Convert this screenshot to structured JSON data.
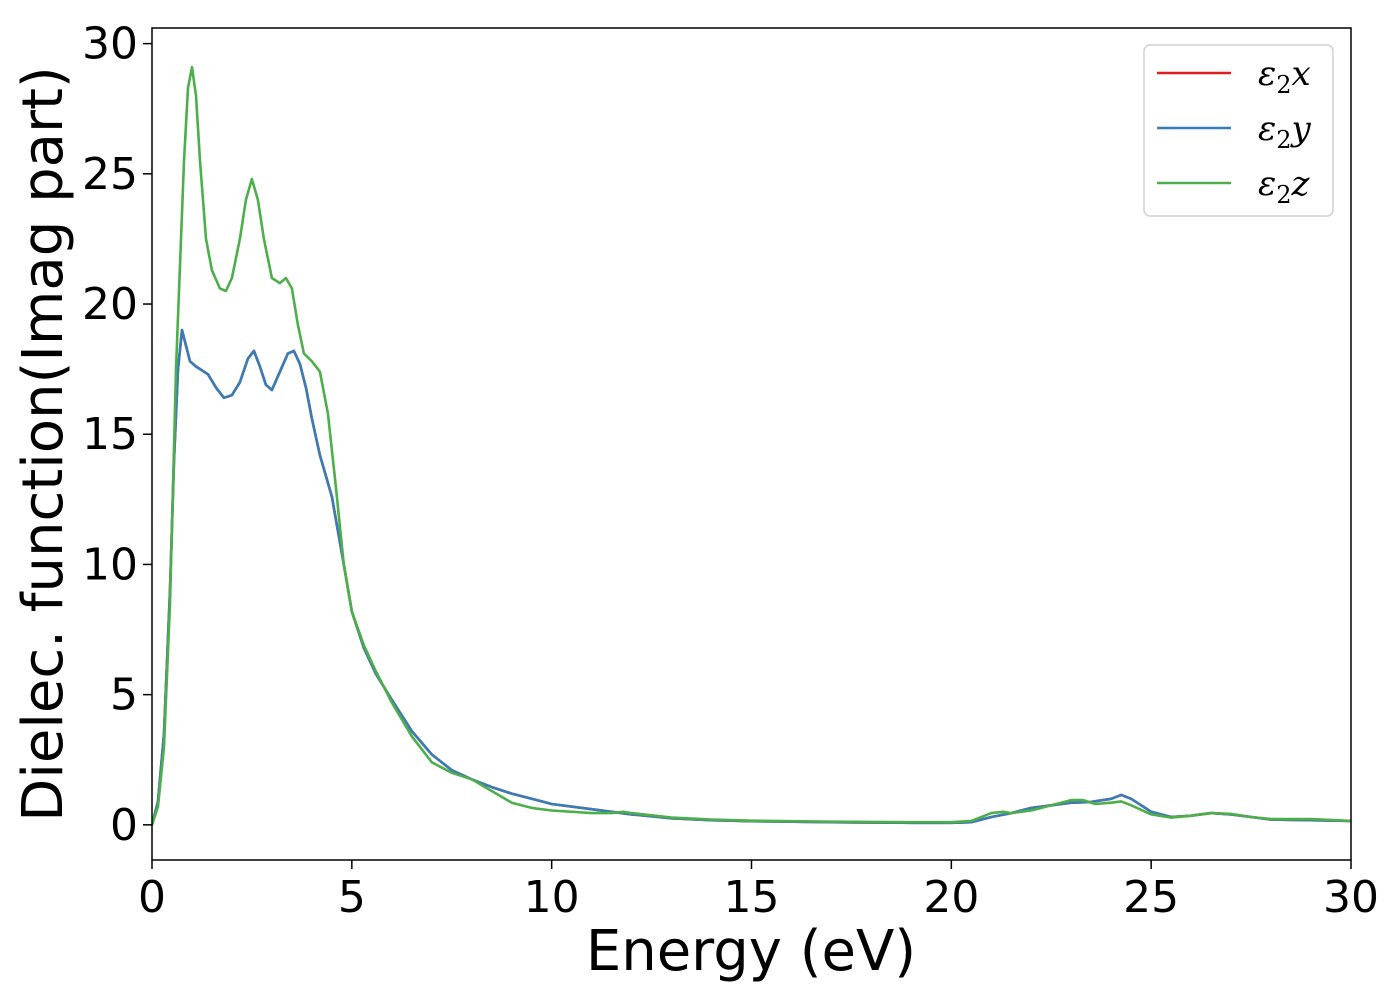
{
  "chart_data": {
    "type": "line",
    "title": "",
    "xlabel": "Energy (eV)",
    "ylabel": "Dielec. function(Imag part)",
    "xlim": [
      0,
      30
    ],
    "ylim": [
      -1.35,
      30.6
    ],
    "xticks": [
      0,
      5,
      10,
      15,
      20,
      25,
      30
    ],
    "yticks": [
      0,
      5,
      10,
      15,
      20,
      25,
      30
    ],
    "grid": false,
    "legend_position": "top-right",
    "series": [
      {
        "name": "x",
        "label_prefix": "ε",
        "label_sub": "2",
        "color": "#e41a1c",
        "points": [
          [
            0,
            0
          ],
          [
            0.15,
            0.9
          ],
          [
            0.3,
            3.5
          ],
          [
            0.45,
            9
          ],
          [
            0.55,
            14
          ],
          [
            0.65,
            17.5
          ],
          [
            0.75,
            19.0
          ],
          [
            0.85,
            18.4
          ],
          [
            0.95,
            17.8
          ],
          [
            1.1,
            17.6
          ],
          [
            1.4,
            17.3
          ],
          [
            1.6,
            16.8
          ],
          [
            1.8,
            16.4
          ],
          [
            2.0,
            16.5
          ],
          [
            2.2,
            17.0
          ],
          [
            2.4,
            17.9
          ],
          [
            2.55,
            18.2
          ],
          [
            2.7,
            17.6
          ],
          [
            2.85,
            16.9
          ],
          [
            3.0,
            16.7
          ],
          [
            3.2,
            17.4
          ],
          [
            3.4,
            18.1
          ],
          [
            3.55,
            18.2
          ],
          [
            3.7,
            17.7
          ],
          [
            3.85,
            16.8
          ],
          [
            4.0,
            15.6
          ],
          [
            4.2,
            14.2
          ],
          [
            4.5,
            12.6
          ],
          [
            4.8,
            10.0
          ],
          [
            5.0,
            8.2
          ],
          [
            5.3,
            6.8
          ],
          [
            5.6,
            5.8
          ],
          [
            6.0,
            4.8
          ],
          [
            6.5,
            3.6
          ],
          [
            7.0,
            2.7
          ],
          [
            7.5,
            2.1
          ],
          [
            8.0,
            1.75
          ],
          [
            8.5,
            1.45
          ],
          [
            9.0,
            1.2
          ],
          [
            9.5,
            1.0
          ],
          [
            10.0,
            0.8
          ],
          [
            11.0,
            0.6
          ],
          [
            12.0,
            0.4
          ],
          [
            13.0,
            0.25
          ],
          [
            14.0,
            0.18
          ],
          [
            15.0,
            0.14
          ],
          [
            17.0,
            0.1
          ],
          [
            19.0,
            0.08
          ],
          [
            20.0,
            0.08
          ],
          [
            20.5,
            0.1
          ],
          [
            21.0,
            0.3
          ],
          [
            21.5,
            0.45
          ],
          [
            22.0,
            0.65
          ],
          [
            22.5,
            0.75
          ],
          [
            23.0,
            0.85
          ],
          [
            23.5,
            0.88
          ],
          [
            24.0,
            1.0
          ],
          [
            24.25,
            1.15
          ],
          [
            24.5,
            1.0
          ],
          [
            25.0,
            0.5
          ],
          [
            25.5,
            0.3
          ],
          [
            26.0,
            0.35
          ],
          [
            26.5,
            0.45
          ],
          [
            27.0,
            0.4
          ],
          [
            27.5,
            0.3
          ],
          [
            28.0,
            0.2
          ],
          [
            29.0,
            0.18
          ],
          [
            30.0,
            0.15
          ]
        ]
      },
      {
        "name": "y",
        "label_prefix": "ε",
        "label_sub": "2",
        "color": "#377eb8",
        "points": [
          [
            0,
            0
          ],
          [
            0.15,
            0.9
          ],
          [
            0.3,
            3.5
          ],
          [
            0.45,
            9
          ],
          [
            0.55,
            14
          ],
          [
            0.65,
            17.5
          ],
          [
            0.75,
            19.0
          ],
          [
            0.85,
            18.4
          ],
          [
            0.95,
            17.8
          ],
          [
            1.1,
            17.6
          ],
          [
            1.4,
            17.3
          ],
          [
            1.6,
            16.8
          ],
          [
            1.8,
            16.4
          ],
          [
            2.0,
            16.5
          ],
          [
            2.2,
            17.0
          ],
          [
            2.4,
            17.9
          ],
          [
            2.55,
            18.2
          ],
          [
            2.7,
            17.6
          ],
          [
            2.85,
            16.9
          ],
          [
            3.0,
            16.7
          ],
          [
            3.2,
            17.4
          ],
          [
            3.4,
            18.1
          ],
          [
            3.55,
            18.2
          ],
          [
            3.7,
            17.7
          ],
          [
            3.85,
            16.8
          ],
          [
            4.0,
            15.6
          ],
          [
            4.2,
            14.2
          ],
          [
            4.5,
            12.6
          ],
          [
            4.8,
            10.0
          ],
          [
            5.0,
            8.2
          ],
          [
            5.3,
            6.8
          ],
          [
            5.6,
            5.8
          ],
          [
            6.0,
            4.8
          ],
          [
            6.5,
            3.6
          ],
          [
            7.0,
            2.7
          ],
          [
            7.5,
            2.1
          ],
          [
            8.0,
            1.75
          ],
          [
            8.5,
            1.45
          ],
          [
            9.0,
            1.2
          ],
          [
            9.5,
            1.0
          ],
          [
            10.0,
            0.8
          ],
          [
            11.0,
            0.6
          ],
          [
            12.0,
            0.4
          ],
          [
            13.0,
            0.25
          ],
          [
            14.0,
            0.18
          ],
          [
            15.0,
            0.14
          ],
          [
            17.0,
            0.1
          ],
          [
            19.0,
            0.08
          ],
          [
            20.0,
            0.08
          ],
          [
            20.5,
            0.1
          ],
          [
            21.0,
            0.3
          ],
          [
            21.5,
            0.45
          ],
          [
            22.0,
            0.65
          ],
          [
            22.5,
            0.75
          ],
          [
            23.0,
            0.85
          ],
          [
            23.5,
            0.88
          ],
          [
            24.0,
            1.0
          ],
          [
            24.25,
            1.15
          ],
          [
            24.5,
            1.0
          ],
          [
            25.0,
            0.5
          ],
          [
            25.5,
            0.3
          ],
          [
            26.0,
            0.35
          ],
          [
            26.5,
            0.45
          ],
          [
            27.0,
            0.4
          ],
          [
            27.5,
            0.3
          ],
          [
            28.0,
            0.2
          ],
          [
            29.0,
            0.18
          ],
          [
            30.0,
            0.15
          ]
        ]
      },
      {
        "name": "z",
        "label_prefix": "ε",
        "label_sub": "2",
        "color": "#4daf4a",
        "points": [
          [
            0,
            0
          ],
          [
            0.15,
            0.7
          ],
          [
            0.3,
            3.0
          ],
          [
            0.45,
            8.5
          ],
          [
            0.6,
            17.5
          ],
          [
            0.7,
            21.5
          ],
          [
            0.8,
            25.5
          ],
          [
            0.9,
            28.3
          ],
          [
            1.0,
            29.1
          ],
          [
            1.1,
            28.0
          ],
          [
            1.2,
            25.5
          ],
          [
            1.35,
            22.5
          ],
          [
            1.5,
            21.3
          ],
          [
            1.7,
            20.6
          ],
          [
            1.85,
            20.5
          ],
          [
            2.0,
            21.0
          ],
          [
            2.2,
            22.5
          ],
          [
            2.35,
            24.0
          ],
          [
            2.5,
            24.8
          ],
          [
            2.65,
            24.0
          ],
          [
            2.8,
            22.5
          ],
          [
            3.0,
            21.0
          ],
          [
            3.2,
            20.8
          ],
          [
            3.35,
            21.0
          ],
          [
            3.5,
            20.6
          ],
          [
            3.65,
            19.2
          ],
          [
            3.8,
            18.1
          ],
          [
            4.0,
            17.8
          ],
          [
            4.2,
            17.4
          ],
          [
            4.4,
            15.8
          ],
          [
            4.6,
            13.0
          ],
          [
            4.8,
            10.0
          ],
          [
            5.0,
            8.2
          ],
          [
            5.3,
            6.9
          ],
          [
            5.6,
            5.9
          ],
          [
            6.0,
            4.7
          ],
          [
            6.5,
            3.4
          ],
          [
            7.0,
            2.4
          ],
          [
            7.5,
            2.0
          ],
          [
            8.0,
            1.75
          ],
          [
            8.5,
            1.3
          ],
          [
            9.0,
            0.85
          ],
          [
            9.5,
            0.65
          ],
          [
            10.0,
            0.55
          ],
          [
            11.0,
            0.45
          ],
          [
            11.5,
            0.45
          ],
          [
            11.8,
            0.5
          ],
          [
            12.0,
            0.45
          ],
          [
            13.0,
            0.28
          ],
          [
            14.0,
            0.2
          ],
          [
            15.0,
            0.16
          ],
          [
            17.0,
            0.12
          ],
          [
            19.0,
            0.1
          ],
          [
            20.0,
            0.1
          ],
          [
            20.5,
            0.15
          ],
          [
            21.0,
            0.45
          ],
          [
            21.3,
            0.5
          ],
          [
            21.5,
            0.45
          ],
          [
            22.0,
            0.55
          ],
          [
            22.5,
            0.75
          ],
          [
            23.0,
            0.95
          ],
          [
            23.3,
            0.95
          ],
          [
            23.6,
            0.8
          ],
          [
            24.0,
            0.85
          ],
          [
            24.25,
            0.9
          ],
          [
            24.5,
            0.75
          ],
          [
            25.0,
            0.4
          ],
          [
            25.5,
            0.28
          ],
          [
            26.0,
            0.35
          ],
          [
            26.5,
            0.45
          ],
          [
            27.0,
            0.42
          ],
          [
            27.5,
            0.3
          ],
          [
            28.0,
            0.22
          ],
          [
            29.0,
            0.22
          ],
          [
            30.0,
            0.15
          ]
        ]
      }
    ]
  }
}
